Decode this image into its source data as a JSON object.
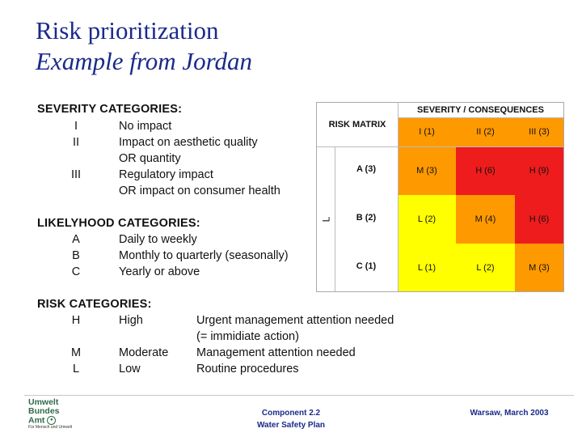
{
  "title": "Risk prioritization",
  "subtitle": "Example from Jordan",
  "severity": {
    "heading": "SEVERITY CATEGORIES:",
    "items": [
      {
        "code": "I",
        "text": "No impact"
      },
      {
        "code": "II",
        "text": "Impact on aesthetic quality"
      },
      {
        "code": "",
        "text": "OR quantity"
      },
      {
        "code": "III",
        "text": "Regulatory impact"
      },
      {
        "code": "",
        "text": "OR impact on consumer health"
      }
    ]
  },
  "likelihood": {
    "heading": "LIKELYHOOD CATEGORIES:",
    "items": [
      {
        "code": "A",
        "text": "Daily to weekly"
      },
      {
        "code": "B",
        "text": "Monthly to quarterly (seasonally)"
      },
      {
        "code": "C",
        "text": "Yearly or above"
      }
    ]
  },
  "risk": {
    "heading": "RISK CATEGORIES:",
    "items": [
      {
        "code": "H",
        "name": "High",
        "desc": "Urgent management attention needed"
      },
      {
        "code": "",
        "name": "",
        "desc": "(= immidiate action)"
      },
      {
        "code": "M",
        "name": "Moderate",
        "desc": "Management attention needed"
      },
      {
        "code": "L",
        "name": "Low",
        "desc": "Routine procedures"
      }
    ]
  },
  "matrix": {
    "corner": "RISK MATRIX",
    "col_header": "SEVERITY / CONSEQUENCES",
    "row_header_fragment": "L",
    "columns": [
      "I (1)",
      "II (2)",
      "III (3)"
    ],
    "rows": [
      "A (3)",
      "B (2)",
      "C (1)"
    ],
    "cells": [
      [
        {
          "text": "M (3)",
          "color": "#ff9900"
        },
        {
          "text": "H (6)",
          "color": "#ee1c1c"
        },
        {
          "text": "H (9)",
          "color": "#ee1c1c"
        }
      ],
      [
        {
          "text": "L (2)",
          "color": "#ffff00"
        },
        {
          "text": "M (4)",
          "color": "#ff9900"
        },
        {
          "text": "H (6)",
          "color": "#ee1c1c"
        }
      ],
      [
        {
          "text": "L (1)",
          "color": "#ffff00"
        },
        {
          "text": "L (2)",
          "color": "#ffff00"
        },
        {
          "text": "M (3)",
          "color": "#ff9900"
        }
      ]
    ]
  },
  "footer": {
    "center_line1": "Component 2.2",
    "center_line2": "Water Safety Plan",
    "right": "Warsaw, March 2003",
    "logo_line1": "Umwelt",
    "logo_line2": "Bundes",
    "logo_line3": "Amt",
    "logo_tagline": "Für Mensch und Umwelt"
  }
}
